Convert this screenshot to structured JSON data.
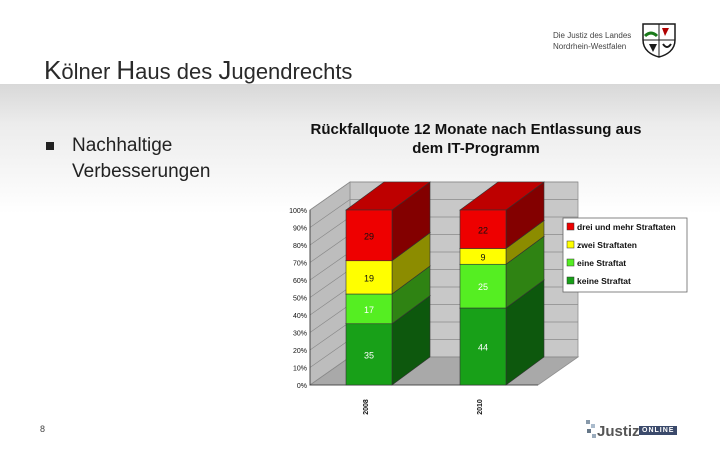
{
  "header": {
    "title_parts": [
      {
        "cap": "K",
        "rest": "ölner "
      },
      {
        "cap": "H",
        "rest": "aus des "
      },
      {
        "cap": "J",
        "rest": "ugendrechts"
      }
    ],
    "org_line1": "Die Justiz des Landes",
    "org_line2": "Nordrhein-Westfalen"
  },
  "content": {
    "bullet_line1": "Nachhaltige",
    "bullet_line2": "Verbesserungen"
  },
  "footer": {
    "page_number": "8",
    "logo_word": "Justiz-",
    "logo_badge": "ONLINE"
  },
  "colors": {
    "keine": "#18a018",
    "eine": "#55ee22",
    "zwei": "#ffff00",
    "drei": "#ee0000",
    "band": "#dcdcdc"
  },
  "chart_data": {
    "type": "bar",
    "stacked": true,
    "three_d": true,
    "title_line1": "Rückfallquote 12 Monate nach Entlassung aus",
    "title_line2": "dem IT-Programm",
    "categories": [
      "2008",
      "2010"
    ],
    "yticks": [
      "0%",
      "10%",
      "20%",
      "30%",
      "40%",
      "50%",
      "60%",
      "70%",
      "80%",
      "90%",
      "100%"
    ],
    "ylim": [
      0,
      100
    ],
    "series": [
      {
        "name": "keine Straftat",
        "values": [
          35,
          44
        ]
      },
      {
        "name": "eine Straftat",
        "values": [
          17,
          25
        ]
      },
      {
        "name": "zwei Straftaten",
        "values": [
          19,
          9
        ]
      },
      {
        "name": "drei und mehr Straftaten",
        "values": [
          29,
          22
        ]
      }
    ],
    "legend_order": [
      "drei und mehr Straftaten",
      "zwei Straftaten",
      "eine Straftat",
      "keine Straftat"
    ],
    "legend_position": "right",
    "grid": true
  }
}
